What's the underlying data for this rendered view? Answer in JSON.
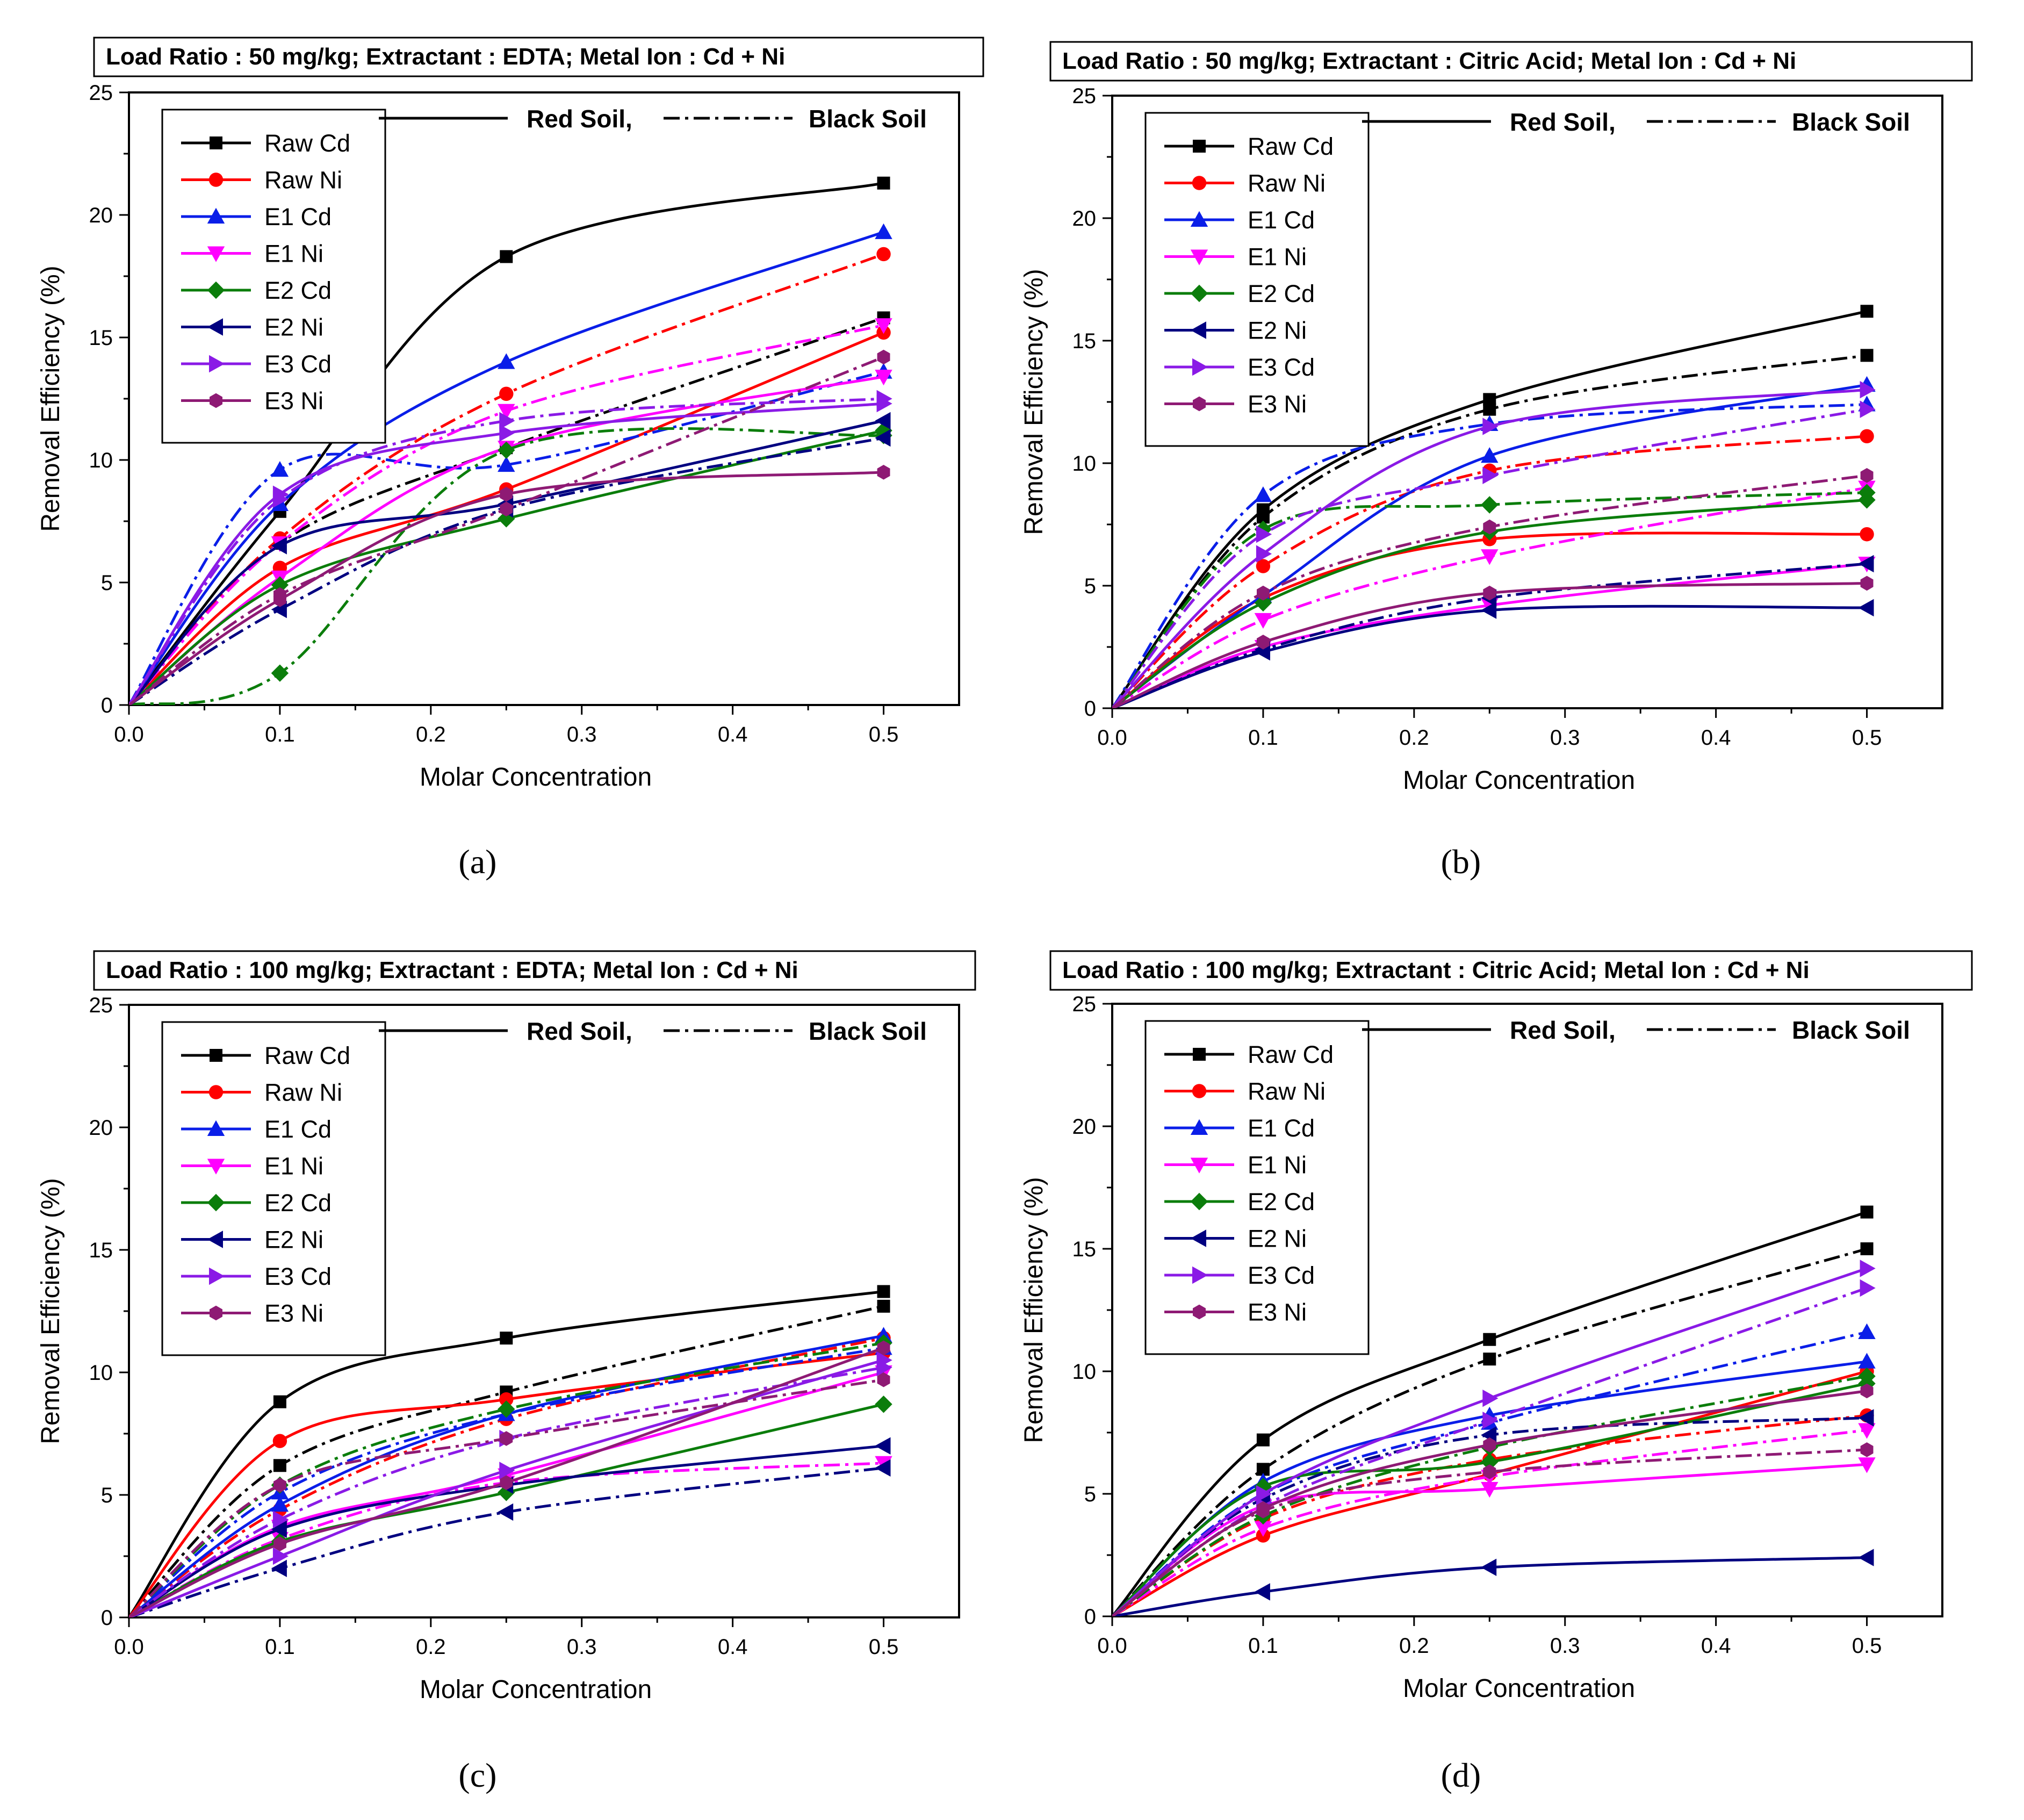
{
  "figure": {
    "line_styles": {
      "red_soil": "Red Soil,",
      "black_soil": "Black Soil"
    }
  },
  "series_colors": {
    "Raw Cd": "#000000",
    "Raw Ni": "#ff0000",
    "E1 Cd": "#0a1ee8",
    "E1 Ni": "#ff00ff",
    "E2 Cd": "#0b7d0b",
    "E2 Ni": "#000080",
    "E3 Cd": "#8a1ae6",
    "E3 Ni": "#8e1a74"
  },
  "chart_data": [
    {
      "panel": "(a)",
      "type": "line",
      "title": "Load Ratio : 50 mg/kg; Extractant : EDTA; Metal Ion : Cd + Ni",
      "xlabel": "Molar Concentration",
      "ylabel": "Removal Efficiency (%)",
      "xlim": [
        0.0,
        0.55
      ],
      "ylim": [
        0,
        25
      ],
      "xticks": [
        "0.0",
        "0.1",
        "0.2",
        "0.3",
        "0.4",
        "0.5"
      ],
      "yticks": [
        "0",
        "5",
        "10",
        "15",
        "20",
        "25"
      ],
      "legend": [
        "Raw Cd",
        "Raw Ni",
        "E1 Cd",
        "E1 Ni",
        "E2 Cd",
        "E2 Ni",
        "E3 Cd",
        "E3 Ni"
      ],
      "x": [
        0,
        0.1,
        0.25,
        0.5
      ],
      "series": [
        {
          "name": "Raw Cd",
          "soil": "Red Soil",
          "values": [
            0,
            7.9,
            18.3,
            21.3
          ]
        },
        {
          "name": "Raw Cd",
          "soil": "Black Soil",
          "values": [
            0,
            6.6,
            10.5,
            15.8
          ]
        },
        {
          "name": "Raw Ni",
          "soil": "Red Soil",
          "values": [
            0,
            5.6,
            8.8,
            15.2
          ]
        },
        {
          "name": "Raw Ni",
          "soil": "Black Soil",
          "values": [
            0,
            6.8,
            12.7,
            18.4
          ]
        },
        {
          "name": "E1 Cd",
          "soil": "Red Soil",
          "values": [
            0,
            8.2,
            14.0,
            19.3
          ]
        },
        {
          "name": "E1 Cd",
          "soil": "Black Soil",
          "values": [
            0,
            9.6,
            9.8,
            13.6
          ]
        },
        {
          "name": "E1 Ni",
          "soil": "Red Soil",
          "values": [
            0,
            5.2,
            10.5,
            13.4
          ]
        },
        {
          "name": "E1 Ni",
          "soil": "Black Soil",
          "values": [
            0,
            6.6,
            12.0,
            15.5
          ]
        },
        {
          "name": "E2 Cd",
          "soil": "Red Soil",
          "values": [
            0,
            4.9,
            7.6,
            11.2
          ]
        },
        {
          "name": "E2 Cd",
          "soil": "Black Soil",
          "values": [
            0,
            1.3,
            10.4,
            11.0
          ]
        },
        {
          "name": "E2 Ni",
          "soil": "Red Soil",
          "values": [
            0,
            6.5,
            8.2,
            11.6
          ]
        },
        {
          "name": "E2 Ni",
          "soil": "Black Soil",
          "values": [
            0,
            3.9,
            8.0,
            10.9
          ]
        },
        {
          "name": "E3 Cd",
          "soil": "Red Soil",
          "values": [
            0,
            8.6,
            11.1,
            12.3
          ]
        },
        {
          "name": "E3 Cd",
          "soil": "Black Soil",
          "values": [
            0,
            8.4,
            11.6,
            12.5
          ]
        },
        {
          "name": "E3 Ni",
          "soil": "Red Soil",
          "values": [
            0,
            4.3,
            8.6,
            9.5
          ]
        },
        {
          "name": "E3 Ni",
          "soil": "Black Soil",
          "values": [
            0,
            4.5,
            8.0,
            14.2
          ]
        }
      ]
    },
    {
      "panel": "(b)",
      "type": "line",
      "title": "Load Ratio : 50 mg/kg; Extractant : Citric Acid; Metal Ion : Cd + Ni",
      "xlabel": "Molar Concentration",
      "ylabel": "Removal Efficiency (%)",
      "xlim": [
        0.0,
        0.55
      ],
      "ylim": [
        0,
        25
      ],
      "xticks": [
        "0.0",
        "0.1",
        "0.2",
        "0.3",
        "0.4",
        "0.5"
      ],
      "yticks": [
        "0",
        "5",
        "10",
        "15",
        "20",
        "25"
      ],
      "legend": [
        "Raw Cd",
        "Raw Ni",
        "E1 Cd",
        "E1 Ni",
        "E2 Cd",
        "E2 Ni",
        "E3 Cd",
        "E3 Ni"
      ],
      "x": [
        0,
        0.1,
        0.25,
        0.5
      ],
      "series": [
        {
          "name": "Raw Cd",
          "soil": "Red Soil",
          "values": [
            0,
            8.1,
            12.6,
            16.2
          ]
        },
        {
          "name": "Raw Cd",
          "soil": "Black Soil",
          "values": [
            0,
            7.8,
            12.2,
            14.4
          ]
        },
        {
          "name": "Raw Ni",
          "soil": "Red Soil",
          "values": [
            0,
            4.5,
            6.9,
            7.1
          ]
        },
        {
          "name": "Raw Ni",
          "soil": "Black Soil",
          "values": [
            0,
            5.8,
            9.7,
            11.1
          ]
        },
        {
          "name": "E1 Cd",
          "soil": "Red Soil",
          "values": [
            0,
            4.6,
            10.3,
            13.2
          ]
        },
        {
          "name": "E1 Cd",
          "soil": "Black Soil",
          "values": [
            0,
            8.7,
            11.6,
            12.4
          ]
        },
        {
          "name": "E1 Ni",
          "soil": "Red Soil",
          "values": [
            0,
            2.5,
            4.2,
            5.9
          ]
        },
        {
          "name": "E1 Ni",
          "soil": "Black Soil",
          "values": [
            0,
            3.6,
            6.2,
            9.0
          ]
        },
        {
          "name": "E2 Cd",
          "soil": "Red Soil",
          "values": [
            0,
            4.3,
            7.2,
            8.5
          ]
        },
        {
          "name": "E2 Cd",
          "soil": "Black Soil",
          "values": [
            0,
            7.3,
            8.3,
            8.8
          ]
        },
        {
          "name": "E2 Ni",
          "soil": "Red Soil",
          "values": [
            0,
            2.3,
            4.0,
            4.1
          ]
        },
        {
          "name": "E2 Ni",
          "soil": "Black Soil",
          "values": [
            0,
            2.4,
            4.5,
            5.9
          ]
        },
        {
          "name": "E3 Cd",
          "soil": "Red Soil",
          "values": [
            0,
            6.3,
            11.5,
            13.0
          ]
        },
        {
          "name": "E3 Cd",
          "soil": "Black Soil",
          "values": [
            0,
            7.1,
            9.5,
            12.2
          ]
        },
        {
          "name": "E3 Ni",
          "soil": "Red Soil",
          "values": [
            0,
            2.7,
            4.7,
            5.1
          ]
        },
        {
          "name": "E3 Ni",
          "soil": "Black Soil",
          "values": [
            0,
            4.7,
            7.4,
            9.5
          ]
        }
      ]
    },
    {
      "panel": "(c)",
      "type": "line",
      "title": "Load Ratio : 100 mg/kg; Extractant : EDTA; Metal Ion : Cd + Ni",
      "xlabel": "Molar Concentration",
      "ylabel": "Removal Efficiency (%)",
      "xlim": [
        0.0,
        0.55
      ],
      "ylim": [
        0,
        25
      ],
      "xticks": [
        "0.0",
        "0.1",
        "0.2",
        "0.3",
        "0.4",
        "0.5"
      ],
      "yticks": [
        "0",
        "5",
        "10",
        "15",
        "20",
        "25"
      ],
      "legend": [
        "Raw Cd",
        "Raw Ni",
        "E1 Cd",
        "E1 Ni",
        "E2 Cd",
        "E2 Ni",
        "E3 Cd",
        "E3 Ni"
      ],
      "x": [
        0,
        0.1,
        0.25,
        0.5
      ],
      "series": [
        {
          "name": "Raw Cd",
          "soil": "Red Soil",
          "values": [
            0,
            8.8,
            11.4,
            13.3
          ]
        },
        {
          "name": "Raw Cd",
          "soil": "Black Soil",
          "values": [
            0,
            6.2,
            9.2,
            12.7
          ]
        },
        {
          "name": "Raw Ni",
          "soil": "Red Soil",
          "values": [
            0,
            7.2,
            8.9,
            10.8
          ]
        },
        {
          "name": "Raw Ni",
          "soil": "Black Soil",
          "values": [
            0,
            4.4,
            8.1,
            11.4
          ]
        },
        {
          "name": "E1 Cd",
          "soil": "Red Soil",
          "values": [
            0,
            4.6,
            8.3,
            11.5
          ]
        },
        {
          "name": "E1 Cd",
          "soil": "Black Soil",
          "values": [
            0,
            5.1,
            8.3,
            11.0
          ]
        },
        {
          "name": "E1 Ni",
          "soil": "Red Soil",
          "values": [
            0,
            3.7,
            5.8,
            10.0
          ]
        },
        {
          "name": "E1 Ni",
          "soil": "Black Soil",
          "values": [
            0,
            3.2,
            5.5,
            6.3
          ]
        },
        {
          "name": "E2 Cd",
          "soil": "Red Soil",
          "values": [
            0,
            3.1,
            5.1,
            8.7
          ]
        },
        {
          "name": "E2 Cd",
          "soil": "Black Soil",
          "values": [
            0,
            5.4,
            8.5,
            11.2
          ]
        },
        {
          "name": "E2 Ni",
          "soil": "Red Soil",
          "values": [
            0,
            3.6,
            5.4,
            7.0
          ]
        },
        {
          "name": "E2 Ni",
          "soil": "Black Soil",
          "values": [
            0,
            2.0,
            4.3,
            6.1
          ]
        },
        {
          "name": "E3 Cd",
          "soil": "Red Soil",
          "values": [
            0,
            2.5,
            6.0,
            10.5
          ]
        },
        {
          "name": "E3 Cd",
          "soil": "Black Soil",
          "values": [
            0,
            4.0,
            7.3,
            10.2
          ]
        },
        {
          "name": "E3 Ni",
          "soil": "Red Soil",
          "values": [
            0,
            3.0,
            5.5,
            11.0
          ]
        },
        {
          "name": "E3 Ni",
          "soil": "Black Soil",
          "values": [
            0,
            5.4,
            7.3,
            9.7
          ]
        }
      ]
    },
    {
      "panel": "(d)",
      "type": "line",
      "title": "Load Ratio : 100 mg/kg; Extractant : Citric Acid; Metal Ion : Cd + Ni",
      "xlabel": "Molar Concentration",
      "ylabel": "Removal Efficiency (%)",
      "xlim": [
        0.0,
        0.55
      ],
      "ylim": [
        0,
        25
      ],
      "xticks": [
        "0.0",
        "0.1",
        "0.2",
        "0.3",
        "0.4",
        "0.5"
      ],
      "yticks": [
        "0",
        "5",
        "10",
        "15",
        "20",
        "25"
      ],
      "legend": [
        "Raw Cd",
        "Raw Ni",
        "E1 Cd",
        "E1 Ni",
        "E2 Cd",
        "E2 Ni",
        "E3 Cd",
        "E3 Ni"
      ],
      "x": [
        0,
        0.1,
        0.25,
        0.5
      ],
      "series": [
        {
          "name": "Raw Cd",
          "soil": "Red Soil",
          "values": [
            0,
            7.2,
            11.3,
            16.5
          ]
        },
        {
          "name": "Raw Cd",
          "soil": "Black Soil",
          "values": [
            0,
            6.0,
            10.5,
            15.0
          ]
        },
        {
          "name": "Raw Ni",
          "soil": "Red Soil",
          "values": [
            0,
            3.3,
            5.8,
            10.0
          ]
        },
        {
          "name": "Raw Ni",
          "soil": "Black Soil",
          "values": [
            0,
            4.0,
            6.4,
            8.2
          ]
        },
        {
          "name": "E1 Cd",
          "soil": "Red Soil",
          "values": [
            0,
            5.5,
            8.2,
            10.4
          ]
        },
        {
          "name": "E1 Cd",
          "soil": "Black Soil",
          "values": [
            0,
            5.0,
            7.9,
            11.6
          ]
        },
        {
          "name": "E1 Ni",
          "soil": "Red Soil",
          "values": [
            0,
            4.5,
            5.2,
            6.2
          ]
        },
        {
          "name": "E1 Ni",
          "soil": "Black Soil",
          "values": [
            0,
            3.6,
            5.7,
            7.6
          ]
        },
        {
          "name": "E2 Cd",
          "soil": "Red Soil",
          "values": [
            0,
            5.3,
            6.3,
            9.5
          ]
        },
        {
          "name": "E2 Cd",
          "soil": "Black Soil",
          "values": [
            0,
            4.1,
            6.9,
            9.8
          ]
        },
        {
          "name": "E2 Ni",
          "soil": "Red Soil",
          "values": [
            0,
            1.0,
            2.0,
            2.4
          ]
        },
        {
          "name": "E2 Ni",
          "soil": "Black Soil",
          "values": [
            0,
            4.8,
            7.4,
            8.1
          ]
        },
        {
          "name": "E3 Cd",
          "soil": "Red Soil",
          "values": [
            0,
            5.0,
            8.9,
            14.2
          ]
        },
        {
          "name": "E3 Cd",
          "soil": "Black Soil",
          "values": [
            0,
            4.5,
            8.0,
            13.4
          ]
        },
        {
          "name": "E3 Ni",
          "soil": "Red Soil",
          "values": [
            0,
            4.4,
            7.0,
            9.2
          ]
        },
        {
          "name": "E3 Ni",
          "soil": "Black Soil",
          "values": [
            0,
            4.3,
            5.9,
            6.8
          ]
        }
      ]
    }
  ]
}
